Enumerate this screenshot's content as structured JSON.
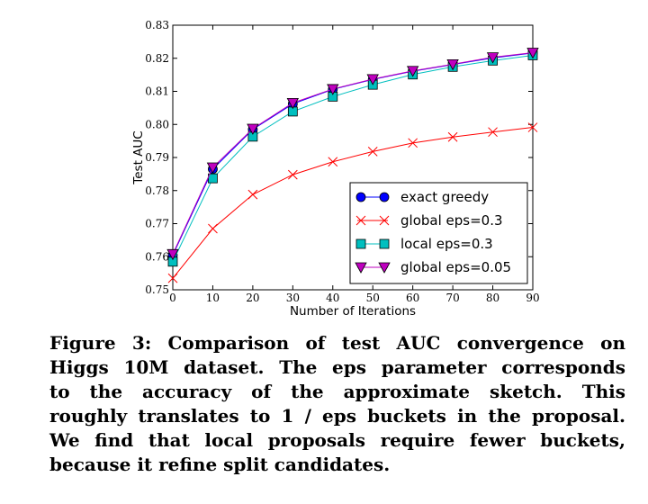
{
  "chart_data": {
    "type": "line",
    "xlabel": "Number of Iterations",
    "ylabel": "Test AUC",
    "xlim": [
      0,
      90
    ],
    "ylim": [
      0.75,
      0.83
    ],
    "xticks": [
      0,
      10,
      20,
      30,
      40,
      50,
      60,
      70,
      80,
      90
    ],
    "xtick_labels": [
      "0",
      "10",
      "20",
      "30",
      "40",
      "50",
      "60",
      "70",
      "80",
      "90"
    ],
    "yticks": [
      0.75,
      0.76,
      0.77,
      0.78,
      0.79,
      0.8,
      0.81,
      0.82,
      0.83
    ],
    "ytick_labels": [
      "0.75",
      "0.76",
      "0.77",
      "0.78",
      "0.79",
      "0.80",
      "0.81",
      "0.82",
      "0.83"
    ],
    "grid": false,
    "legend_position": "lower-right",
    "x": [
      0,
      10,
      20,
      30,
      40,
      50,
      60,
      70,
      80,
      90
    ],
    "series": [
      {
        "name": "exact greedy",
        "color": "#0000ff",
        "marker": "circle",
        "values": [
          0.7605,
          0.7865,
          0.7985,
          0.8062,
          0.8106,
          0.8136,
          0.8161,
          0.8181,
          0.8201,
          0.8216
        ]
      },
      {
        "name": "global eps=0.3",
        "color": "#ff0000",
        "marker": "x",
        "values": [
          0.7535,
          0.7685,
          0.7788,
          0.7848,
          0.7887,
          0.7918,
          0.7944,
          0.7962,
          0.7977,
          0.7991
        ]
      },
      {
        "name": "local eps=0.3",
        "color": "#00bfbf",
        "marker": "square",
        "values": [
          0.7585,
          0.7837,
          0.7963,
          0.8039,
          0.8084,
          0.812,
          0.8151,
          0.8174,
          0.8193,
          0.8209
        ]
      },
      {
        "name": "global eps=0.05",
        "color": "#bf00bf",
        "marker": "triangle-down",
        "values": [
          0.7608,
          0.787,
          0.7987,
          0.8065,
          0.8107,
          0.8137,
          0.8162,
          0.8182,
          0.8203,
          0.8217
        ]
      }
    ]
  },
  "caption": {
    "lines": [
      "Figure 3: Comparison of test AUC convergence on",
      "Higgs 10M dataset. The eps parameter corresponds",
      "to the accuracy of the approximate sketch. This",
      "roughly translates to 1 / eps buckets in the proposal.",
      "We find that local proposals require fewer buckets,",
      "because it refine split candidates."
    ]
  }
}
